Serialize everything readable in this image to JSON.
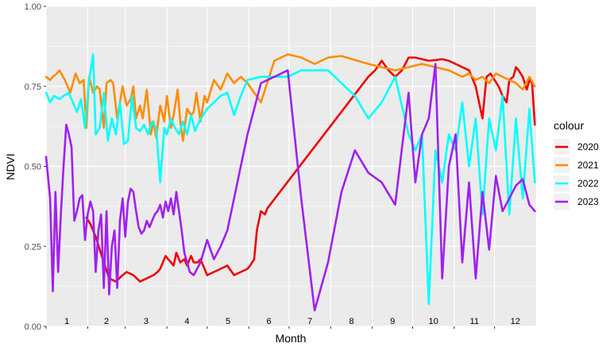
{
  "chart_data": {
    "type": "line",
    "title": "",
    "xlabel": "Month",
    "ylabel": "NDVI",
    "ylim": [
      0,
      1
    ],
    "xlim": [
      0,
      365
    ],
    "y_ticks": [
      "0.00",
      "0.25",
      "0.50",
      "0.75",
      "1.00"
    ],
    "month_labels": [
      "1",
      "2",
      "3",
      "4",
      "5",
      "6",
      "7",
      "8",
      "9",
      "10",
      "11",
      "12"
    ],
    "legend_title": "colour",
    "legend_position": "right",
    "grid": true,
    "series": [
      {
        "name": "2020",
        "color": "#ee0000",
        "x": [
          30,
          33,
          37,
          40,
          43,
          47,
          52,
          57,
          60,
          65,
          70,
          75,
          80,
          83,
          85,
          87,
          89,
          91,
          93,
          95,
          97,
          100,
          103,
          105,
          108,
          110,
          113,
          115,
          118,
          120,
          125,
          130,
          135,
          140,
          145,
          150,
          152,
          155,
          157,
          160,
          163,
          165,
          240,
          245,
          250,
          255,
          260,
          265,
          270,
          275,
          280,
          285,
          290,
          295,
          300,
          305,
          310,
          315,
          320,
          325,
          328,
          331,
          334,
          337,
          340,
          343,
          345,
          348,
          350,
          352,
          355,
          358,
          360,
          362,
          364
        ],
        "y": [
          0.34,
          0.32,
          0.28,
          0.24,
          0.2,
          0.15,
          0.14,
          0.16,
          0.17,
          0.16,
          0.14,
          0.15,
          0.16,
          0.17,
          0.18,
          0.2,
          0.22,
          0.21,
          0.2,
          0.19,
          0.23,
          0.2,
          0.21,
          0.19,
          0.22,
          0.2,
          0.2,
          0.21,
          0.18,
          0.16,
          0.17,
          0.18,
          0.19,
          0.16,
          0.17,
          0.18,
          0.19,
          0.21,
          0.3,
          0.36,
          0.35,
          0.37,
          0.78,
          0.8,
          0.83,
          0.8,
          0.78,
          0.8,
          0.84,
          0.84,
          0.835,
          0.83,
          0.832,
          0.835,
          0.83,
          0.82,
          0.81,
          0.8,
          0.75,
          0.65,
          0.78,
          0.79,
          0.77,
          0.75,
          0.72,
          0.7,
          0.77,
          0.78,
          0.81,
          0.8,
          0.78,
          0.74,
          0.77,
          0.76,
          0.63
        ]
      },
      {
        "name": "2021",
        "color": "#ff8c00",
        "x": [
          0,
          3,
          5,
          8,
          10,
          14,
          18,
          22,
          25,
          28,
          30,
          32,
          35,
          38,
          40,
          43,
          45,
          48,
          50,
          53,
          55,
          57,
          60,
          63,
          65,
          67,
          70,
          72,
          75,
          78,
          80,
          82,
          85,
          88,
          90,
          93,
          95,
          98,
          100,
          102,
          105,
          108,
          110,
          112,
          115,
          118,
          120,
          125,
          130,
          135,
          140,
          145,
          150,
          160,
          170,
          180,
          190,
          200,
          210,
          220,
          240,
          260,
          280,
          300,
          310,
          315,
          320,
          325,
          330,
          335,
          340,
          345,
          350,
          355,
          360,
          364
        ],
        "y": [
          0.78,
          0.77,
          0.78,
          0.79,
          0.8,
          0.77,
          0.73,
          0.79,
          0.76,
          0.77,
          0.62,
          0.78,
          0.73,
          0.75,
          0.74,
          0.62,
          0.76,
          0.77,
          0.76,
          0.65,
          0.7,
          0.75,
          0.69,
          0.71,
          0.75,
          0.65,
          0.69,
          0.65,
          0.74,
          0.6,
          0.64,
          0.59,
          0.69,
          0.64,
          0.72,
          0.62,
          0.66,
          0.74,
          0.64,
          0.58,
          0.68,
          0.66,
          0.67,
          0.73,
          0.64,
          0.72,
          0.7,
          0.77,
          0.74,
          0.79,
          0.76,
          0.78,
          0.76,
          0.7,
          0.83,
          0.85,
          0.84,
          0.82,
          0.84,
          0.845,
          0.82,
          0.8,
          0.82,
          0.8,
          0.78,
          0.79,
          0.77,
          0.78,
          0.76,
          0.79,
          0.78,
          0.77,
          0.76,
          0.74,
          0.78,
          0.75
        ]
      },
      {
        "name": "2022",
        "color": "#00ffff",
        "x": [
          0,
          3,
          6,
          10,
          13,
          17,
          20,
          23,
          26,
          29,
          32,
          35,
          37,
          40,
          43,
          46,
          49,
          52,
          55,
          58,
          61,
          64,
          67,
          70,
          73,
          76,
          79,
          82,
          85,
          88,
          90,
          93,
          96,
          99,
          102,
          105,
          108,
          111,
          114,
          117,
          120,
          125,
          130,
          135,
          140,
          145,
          150,
          160,
          170,
          180,
          190,
          200,
          210,
          220,
          230,
          240,
          250,
          260,
          270,
          275,
          280,
          285,
          290,
          295,
          300,
          305,
          310,
          315,
          320,
          325,
          330,
          335,
          340,
          345,
          350,
          355,
          360,
          364
        ],
        "y": [
          0.73,
          0.7,
          0.72,
          0.71,
          0.72,
          0.73,
          0.7,
          0.67,
          0.71,
          0.62,
          0.77,
          0.85,
          0.6,
          0.62,
          0.73,
          0.58,
          0.65,
          0.6,
          0.7,
          0.57,
          0.58,
          0.72,
          0.62,
          0.61,
          0.63,
          0.6,
          0.64,
          0.62,
          0.45,
          0.62,
          0.6,
          0.65,
          0.62,
          0.6,
          0.64,
          0.6,
          0.66,
          0.61,
          0.64,
          0.66,
          0.68,
          0.7,
          0.72,
          0.73,
          0.66,
          0.72,
          0.77,
          0.78,
          0.78,
          0.78,
          0.8,
          0.8,
          0.8,
          0.76,
          0.72,
          0.65,
          0.7,
          0.78,
          0.6,
          0.55,
          0.6,
          0.07,
          0.55,
          0.45,
          0.6,
          0.55,
          0.7,
          0.5,
          0.65,
          0.35,
          0.65,
          0.55,
          0.72,
          0.35,
          0.65,
          0.4,
          0.68,
          0.45
        ]
      },
      {
        "name": "2023",
        "color": "#a020f0",
        "x": [
          0,
          3,
          5,
          7,
          9,
          11,
          13,
          15,
          17,
          19,
          21,
          23,
          25,
          27,
          29,
          31,
          33,
          35,
          37,
          39,
          41,
          43,
          45,
          47,
          49,
          51,
          53,
          55,
          57,
          59,
          61,
          63,
          65,
          67,
          69,
          71,
          73,
          75,
          77,
          79,
          81,
          83,
          85,
          87,
          89,
          91,
          93,
          95,
          97,
          99,
          101,
          103,
          105,
          107,
          110,
          115,
          120,
          125,
          130,
          135,
          140,
          145,
          150,
          160,
          170,
          180,
          190,
          200,
          210,
          220,
          230,
          240,
          250,
          260,
          270,
          275,
          280,
          285,
          290,
          295,
          300,
          305,
          310,
          315,
          320,
          325,
          330,
          335,
          340,
          345,
          350,
          355,
          360,
          364
        ],
        "y": [
          0.53,
          0.4,
          0.11,
          0.42,
          0.17,
          0.35,
          0.5,
          0.63,
          0.6,
          0.56,
          0.33,
          0.36,
          0.4,
          0.41,
          0.27,
          0.35,
          0.39,
          0.36,
          0.17,
          0.3,
          0.35,
          0.12,
          0.36,
          0.1,
          0.25,
          0.3,
          0.12,
          0.33,
          0.4,
          0.28,
          0.39,
          0.43,
          0.42,
          0.36,
          0.31,
          0.29,
          0.3,
          0.33,
          0.31,
          0.33,
          0.35,
          0.36,
          0.38,
          0.34,
          0.39,
          0.36,
          0.4,
          0.35,
          0.42,
          0.36,
          0.3,
          0.23,
          0.2,
          0.17,
          0.16,
          0.2,
          0.27,
          0.21,
          0.25,
          0.3,
          0.4,
          0.5,
          0.6,
          0.76,
          0.78,
          0.8,
          0.4,
          0.05,
          0.2,
          0.42,
          0.55,
          0.48,
          0.45,
          0.38,
          0.73,
          0.45,
          0.6,
          0.65,
          0.82,
          0.15,
          0.5,
          0.6,
          0.2,
          0.45,
          0.15,
          0.42,
          0.24,
          0.47,
          0.36,
          0.4,
          0.44,
          0.46,
          0.38,
          0.36
        ]
      }
    ]
  }
}
